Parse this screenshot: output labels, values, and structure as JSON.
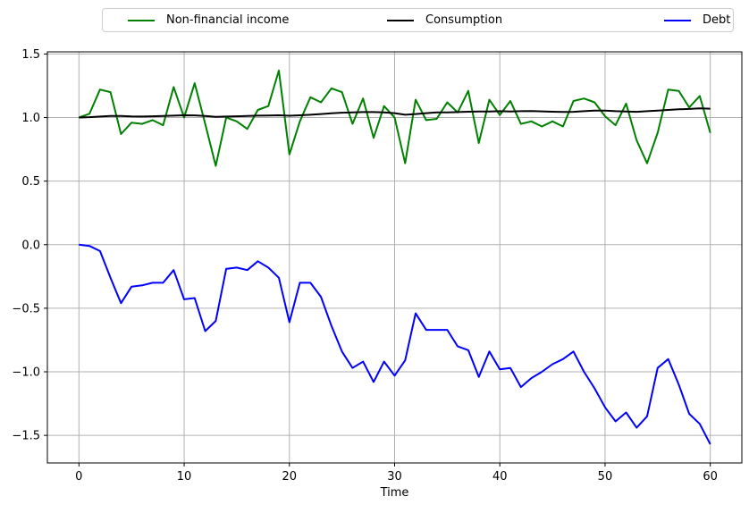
{
  "colors": {
    "background": "#ffffff",
    "grid": "#b0b0b0",
    "spine": "#000000",
    "tick_text": "#000000",
    "legend_border": "#cccccc",
    "income": "#008000",
    "consumption": "#000000",
    "debt": "#0000ff"
  },
  "legend": {
    "items": [
      {
        "label": "Non-financial income",
        "color": "#008000"
      },
      {
        "label": "Consumption",
        "color": "#000000"
      },
      {
        "label": "Debt",
        "color": "#0000ff"
      }
    ]
  },
  "chart_data": {
    "type": "line",
    "title": "",
    "xlabel": "Time",
    "ylabel": "",
    "xlim": [
      -3,
      63
    ],
    "ylim": [
      -1.717,
      1.517
    ],
    "x_ticks": [
      0,
      10,
      20,
      30,
      40,
      50,
      60
    ],
    "y_ticks": [
      -1.5,
      -1.0,
      -0.5,
      0.0,
      0.5,
      1.0,
      1.5
    ],
    "grid": true,
    "legend_position": "top-expanded",
    "x": [
      0,
      1,
      2,
      3,
      4,
      5,
      6,
      7,
      8,
      9,
      10,
      11,
      12,
      13,
      14,
      15,
      16,
      17,
      18,
      19,
      20,
      21,
      22,
      23,
      24,
      25,
      26,
      27,
      28,
      29,
      30,
      31,
      32,
      33,
      34,
      35,
      36,
      37,
      38,
      39,
      40,
      41,
      42,
      43,
      44,
      45,
      46,
      47,
      48,
      49,
      50,
      51,
      52,
      53,
      54,
      55,
      56,
      57,
      58,
      59,
      60
    ],
    "series": [
      {
        "name": "Non-financial income",
        "color": "#008000",
        "values": [
          1.0,
          1.03,
          1.22,
          1.2,
          0.87,
          0.96,
          0.95,
          0.98,
          0.94,
          1.24,
          1.0,
          1.27,
          0.95,
          0.62,
          1.0,
          0.97,
          0.91,
          1.06,
          1.09,
          1.37,
          0.71,
          0.97,
          1.16,
          1.12,
          1.23,
          1.2,
          0.95,
          1.15,
          0.84,
          1.09,
          1.0,
          0.64,
          1.14,
          0.98,
          0.99,
          1.12,
          1.04,
          1.21,
          0.8,
          1.14,
          1.02,
          1.13,
          0.95,
          0.97,
          0.93,
          0.97,
          0.93,
          1.13,
          1.15,
          1.12,
          1.01,
          0.94,
          1.11,
          0.82,
          0.64,
          0.88,
          1.22,
          1.21,
          1.08,
          1.17,
          0.88
        ]
      },
      {
        "name": "Consumption",
        "color": "#000000",
        "values": [
          1.0,
          1.003,
          1.008,
          1.013,
          1.012,
          1.009,
          1.008,
          1.01,
          1.012,
          1.015,
          1.018,
          1.017,
          1.012,
          1.006,
          1.008,
          1.01,
          1.013,
          1.015,
          1.016,
          1.018,
          1.014,
          1.018,
          1.022,
          1.028,
          1.034,
          1.038,
          1.04,
          1.043,
          1.043,
          1.04,
          1.035,
          1.022,
          1.028,
          1.035,
          1.04,
          1.04,
          1.043,
          1.046,
          1.048,
          1.048,
          1.05,
          1.048,
          1.05,
          1.051,
          1.049,
          1.046,
          1.044,
          1.045,
          1.05,
          1.055,
          1.055,
          1.05,
          1.048,
          1.045,
          1.05,
          1.055,
          1.06,
          1.065,
          1.068,
          1.072,
          1.07
        ]
      },
      {
        "name": "Debt",
        "color": "#0000ff",
        "values": [
          0.0,
          -0.01,
          -0.05,
          -0.26,
          -0.46,
          -0.33,
          -0.32,
          -0.3,
          -0.3,
          -0.2,
          -0.43,
          -0.42,
          -0.68,
          -0.6,
          -0.19,
          -0.18,
          -0.2,
          -0.13,
          -0.18,
          -0.26,
          -0.61,
          -0.3,
          -0.3,
          -0.41,
          -0.64,
          -0.84,
          -0.97,
          -0.92,
          -1.08,
          -0.92,
          -1.03,
          -0.91,
          -0.54,
          -0.67,
          -0.67,
          -0.67,
          -0.8,
          -0.83,
          -1.04,
          -0.84,
          -0.98,
          -0.97,
          -1.12,
          -1.05,
          -1.0,
          -0.94,
          -0.9,
          -0.84,
          -1.0,
          -1.13,
          -1.28,
          -1.39,
          -1.32,
          -1.44,
          -1.35,
          -0.97,
          -0.9,
          -1.1,
          -1.33,
          -1.41,
          -1.57
        ]
      }
    ]
  }
}
